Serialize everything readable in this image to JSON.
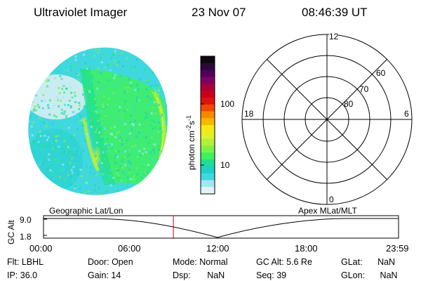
{
  "header": {
    "title": "Ultraviolet Imager",
    "date": "23 Nov 07",
    "time": "08:46:39 UT"
  },
  "colorbar": {
    "label": "photon cm",
    "label_exp1": "-2",
    "label_s": "s",
    "label_exp2": "-1",
    "ticks": [
      "100",
      "10"
    ],
    "colors": [
      "#0a0a0a",
      "#2a0a3a",
      "#50005a",
      "#800060",
      "#a8003a",
      "#c80020",
      "#e01010",
      "#f04800",
      "#f88800",
      "#f8b800",
      "#f8e818",
      "#e0f028",
      "#b0f038",
      "#80f048",
      "#40f060",
      "#20e090",
      "#20d0c8",
      "#40d8e0",
      "#a0e8f0",
      "#e0f4f8"
    ]
  },
  "polar": {
    "labels": {
      "top": "12",
      "bottom": "0",
      "left": "18",
      "right": "6"
    },
    "ring_labels": [
      "60",
      "70",
      "80"
    ]
  },
  "timeline": {
    "left_label": "Geographic Lat/Lon",
    "right_label": "Apex MLat/MLT",
    "y_label": "GC Alt",
    "y_top": "9.0",
    "y_bottom": "1.8",
    "x_ticks": [
      "00:00",
      "06:00",
      "12:00",
      "18:00",
      "23:59"
    ],
    "marker_time_hours": 8.78
  },
  "footer": [
    {
      "label": "Flt:",
      "value": "LBHL"
    },
    {
      "label": "Door:",
      "value": "Open"
    },
    {
      "label": "Mode:",
      "value": "Normal"
    },
    {
      "label": "GC Alt:",
      "value": "5.6 Re"
    },
    {
      "label": "GLat:",
      "value": "NaN"
    },
    {
      "label": "IP:",
      "value": "36.0"
    },
    {
      "label": "Gain:",
      "value": "14"
    },
    {
      "label": "Dsp:",
      "value": "NaN"
    },
    {
      "label": "Seq:",
      "value": "39"
    },
    {
      "label": "GLon:",
      "value": "NaN"
    }
  ]
}
